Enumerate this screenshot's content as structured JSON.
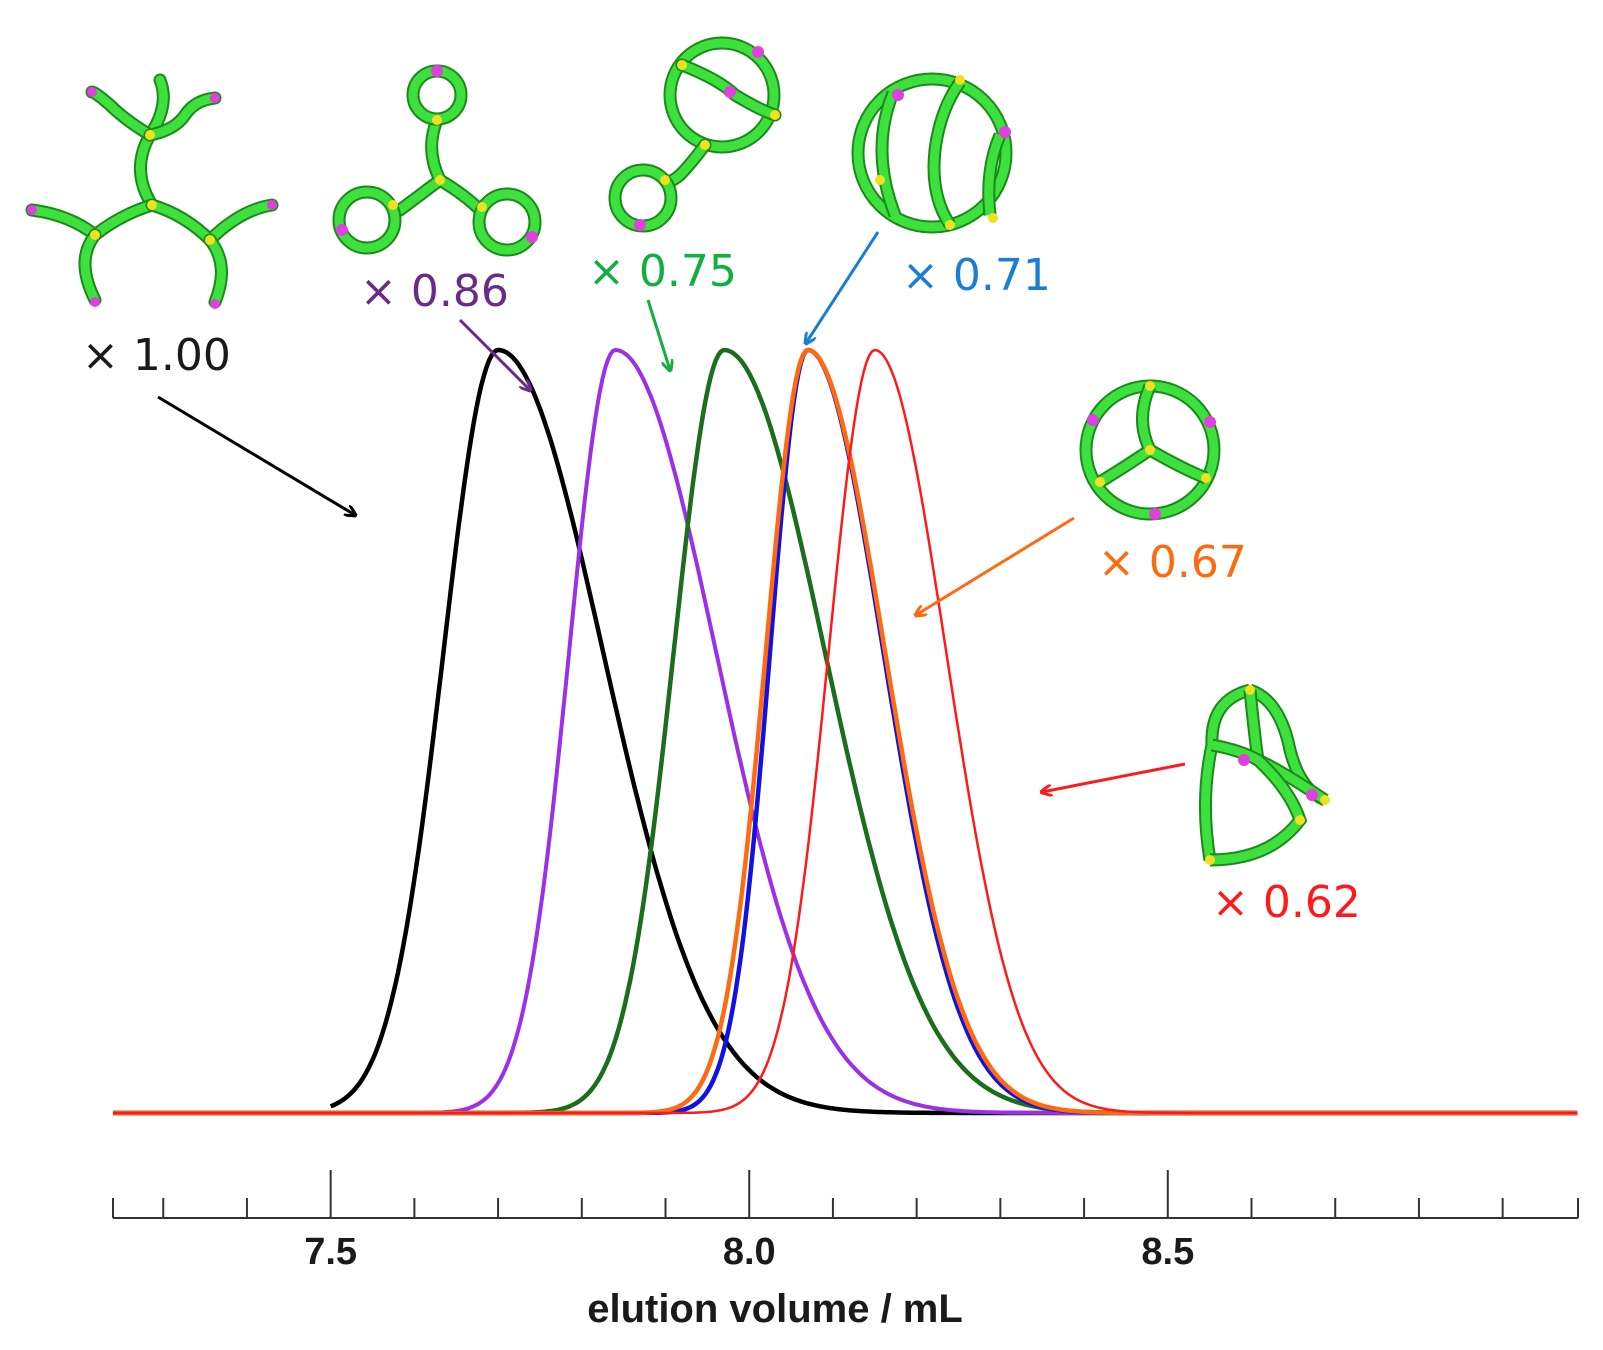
{
  "chart_data": {
    "type": "line",
    "xlabel": "elution volume / mL",
    "ylabel": "",
    "xlim": [
      7.24,
      8.99
    ],
    "ylim": [
      0,
      1.0
    ],
    "x_ticks": [
      7.5,
      8.0,
      8.5
    ],
    "x_tick_labels": [
      "7.5",
      "8.0",
      "8.5"
    ],
    "minor_tick_step": 0.1,
    "grid": false,
    "legend": "none",
    "series": [
      {
        "label": "× 1.00",
        "color": "#000000",
        "peak_x": 7.7,
        "sigma_left": 0.065,
        "sigma_right": 0.125,
        "stroke": 4.5,
        "molecule": "star",
        "x_start": 7.5
      },
      {
        "label": "× 0.86",
        "color": "#9b30e6",
        "peak_x": 7.84,
        "sigma_left": 0.055,
        "sigma_right": 0.12,
        "stroke": 4,
        "molecule": "three-ring-star",
        "x_start": 7.24
      },
      {
        "label": "× 0.75",
        "color": "#1b6e1b",
        "peak_x": 7.97,
        "sigma_left": 0.06,
        "sigma_right": 0.12,
        "stroke": 4.5,
        "molecule": "ring-tail",
        "x_start": 7.24
      },
      {
        "label": "× 0.71",
        "color": "#1111e0",
        "peak_x": 8.07,
        "sigma_left": 0.045,
        "sigma_right": 0.09,
        "stroke": 4.5,
        "molecule": "theta-ring",
        "x_start": 7.24
      },
      {
        "label": "× 0.67",
        "color": "#ff6a10",
        "peak_x": 8.07,
        "sigma_left": 0.05,
        "sigma_right": 0.092,
        "stroke": 4.5,
        "molecule": "trefoil-ring",
        "x_start": 7.24
      },
      {
        "label": "× 0.62",
        "color": "#ff1a1a",
        "peak_x": 8.15,
        "sigma_left": 0.055,
        "sigma_right": 0.085,
        "stroke": 2.5,
        "molecule": "cage",
        "x_start": 7.24
      }
    ]
  }
}
